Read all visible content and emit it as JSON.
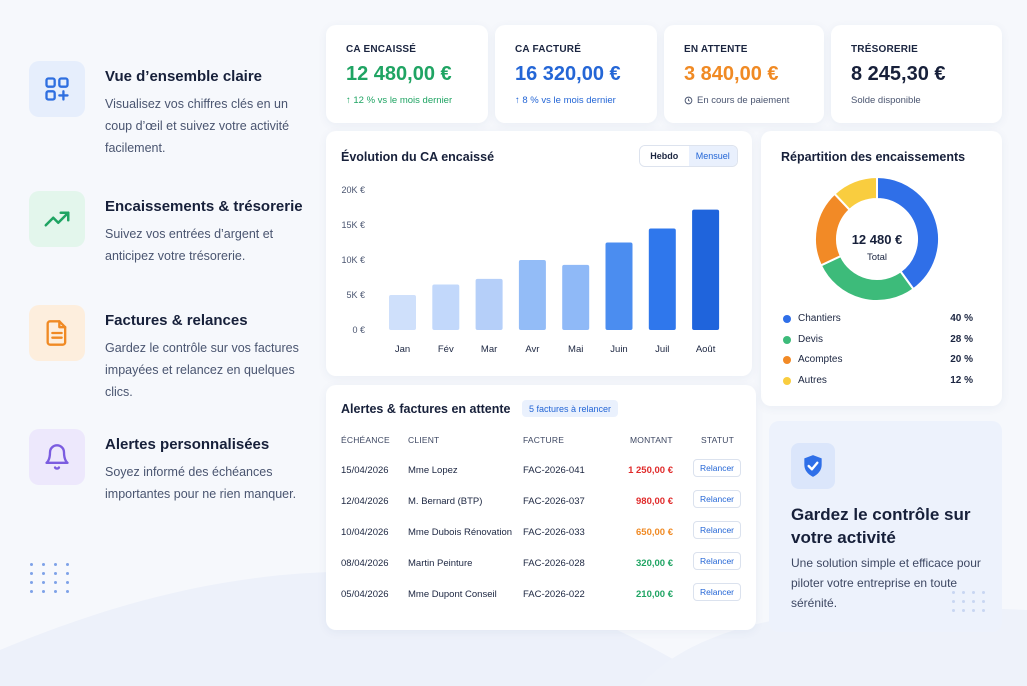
{
  "features": [
    {
      "title": "Vue d’ensemble claire",
      "desc": "Visualisez vos chiffres clés en un coup d’œil et suivez votre activité facilement.",
      "icon": "grid-plus-icon",
      "color": "#2f6fe0",
      "bg": "#e6eefc"
    },
    {
      "title": "Encaissements & trésorerie",
      "desc": "Suivez vos entrées d’argent et anticipez votre trésorerie.",
      "icon": "trend-up-icon",
      "color": "#1fa463",
      "bg": "#e3f6ec"
    },
    {
      "title": "Factures & relances",
      "desc": "Gardez le contrôle sur vos factures impayées et relancez en quelques clics.",
      "icon": "document-icon",
      "color": "#f08a24",
      "bg": "#fdeedd"
    },
    {
      "title": "Alertes personnalisées",
      "desc": "Soyez informé des échéances importantes pour ne rien manquer.",
      "icon": "bell-icon",
      "color": "#7b5ce0",
      "bg": "#ede8fc"
    }
  ],
  "kpis": [
    {
      "label": "CA ENCAISSÉ",
      "value": "12 480,00 €",
      "sub": "↑ 12 % vs le mois dernier",
      "value_color": "#1fa463",
      "sub_color": "#1fa463"
    },
    {
      "label": "CA FACTURÉ",
      "value": "16 320,00 €",
      "sub": "↑ 8 % vs le mois dernier",
      "value_color": "#2466d6",
      "sub_color": "#2466d6"
    },
    {
      "label": "EN ATTENTE",
      "value": "3 840,00 €",
      "sub": "En cours de paiement",
      "value_color": "#f08a24",
      "sub_color": "#4a5570"
    },
    {
      "label": "TRÉSORERIE",
      "value": "8 245,30 €",
      "sub": "Solde disponible",
      "value_color": "#17203a",
      "sub_color": "#4a5570"
    }
  ],
  "evolution": {
    "title": "Évolution du CA encaissé",
    "toggle": {
      "hebdo": "Hebdo",
      "mensuel": "Mensuel"
    }
  },
  "repartition": {
    "title": "Répartition des encaissements",
    "center_value": "12 480 €",
    "center_label": "Total",
    "legend": [
      {
        "name": "Chantiers",
        "value": "40 %",
        "color": "#2f6fe8"
      },
      {
        "name": "Devis",
        "value": "28 %",
        "color": "#3dbb7a"
      },
      {
        "name": "Acomptes",
        "value": "20 %",
        "color": "#f28a26"
      },
      {
        "name": "Autres",
        "value": "12 %",
        "color": "#f9cd3f"
      }
    ]
  },
  "alerts": {
    "title": "Alertes & factures en attente",
    "badge": "5 factures à relancer",
    "columns": [
      "ÉCHÉANCE",
      "CLIENT",
      "FACTURE",
      "MONTANT",
      "STATUT"
    ],
    "rows": [
      {
        "date": "15/04/2026",
        "client": "Mme Lopez",
        "invoice": "FAC-2026-041",
        "amount": "1 250,00 €",
        "amount_color": "#e02b2b",
        "action": "Relancer"
      },
      {
        "date": "12/04/2026",
        "client": "M. Bernard (BTP)",
        "invoice": "FAC-2026-037",
        "amount": "980,00 €",
        "amount_color": "#e02b2b",
        "action": "Relancer"
      },
      {
        "date": "10/04/2026",
        "client": "Mme Dubois Rénovation",
        "invoice": "FAC-2026-033",
        "amount": "650,00 €",
        "amount_color": "#f08a24",
        "action": "Relancer"
      },
      {
        "date": "08/04/2026",
        "client": "Martin Peinture",
        "invoice": "FAC-2026-028",
        "amount": "320,00 €",
        "amount_color": "#1fa463",
        "action": "Relancer"
      },
      {
        "date": "05/04/2026",
        "client": "Mme Dupont Conseil",
        "invoice": "FAC-2026-022",
        "amount": "210,00 €",
        "amount_color": "#1fa463",
        "action": "Relancer"
      }
    ]
  },
  "promo": {
    "title": "Gardez le contrôle sur votre activité",
    "desc": "Une solution simple et efficace pour piloter votre entreprise en toute sérénité.",
    "icon": "shield-check-icon"
  },
  "chart_data": [
    {
      "type": "bar",
      "title": "Évolution du CA encaissé",
      "categories": [
        "Jan",
        "Fév",
        "Mar",
        "Avr",
        "Mai",
        "Juin",
        "Juil",
        "Août"
      ],
      "values": [
        5000,
        6500,
        7300,
        10000,
        9300,
        12500,
        14500,
        17200
      ],
      "ylim": [
        0,
        20000
      ],
      "yticks": [
        "0 €",
        "5K €",
        "10K €",
        "15K €",
        "20K €"
      ],
      "grid": false
    },
    {
      "type": "pie",
      "title": "Répartition des encaissements",
      "labels": [
        "Chantiers",
        "Devis",
        "Acomptes",
        "Autres"
      ],
      "values": [
        40,
        28,
        20,
        12
      ],
      "colors": [
        "#2f6fe8",
        "#3dbb7a",
        "#f28a26",
        "#f9cd3f"
      ],
      "donut": true
    }
  ]
}
